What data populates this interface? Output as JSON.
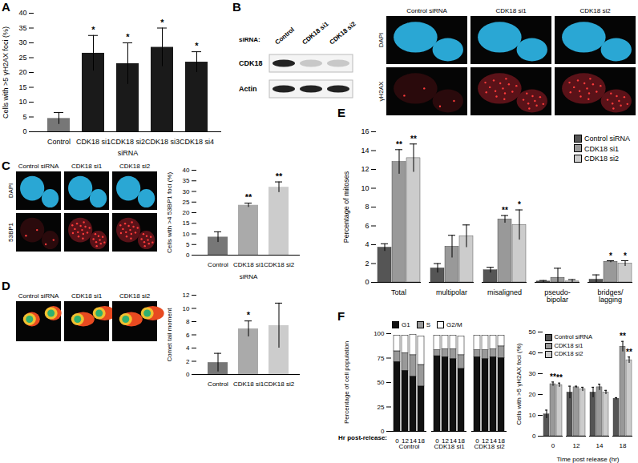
{
  "blot": {
    "panel": "B",
    "header": "siRNA:",
    "lanes": [
      "Control",
      "CDK18 si1",
      "CDK18 si2"
    ],
    "rows": [
      "CDK18",
      "Actin"
    ]
  },
  "images": [
    {
      "columns": [
        "Control siRNA",
        "CDK18 si1",
        "CDK18 si2"
      ],
      "rows": [
        "DAPI",
        "γH2AX"
      ]
    },
    {
      "panel": "C",
      "columns": [
        "Control siRNA",
        "CDK18 si1",
        "CDK18 si2"
      ],
      "rows": [
        "DAPI",
        "53BP1"
      ]
    },
    {
      "panel": "D",
      "columns": [
        "Control siRNA",
        "CDK18 si1",
        "CDK18 si2"
      ]
    }
  ],
  "chart_data": [
    {
      "type": "bar",
      "panel": "A",
      "categories": [
        "Control",
        "CDK18 si1",
        "CDK18 si2",
        "CDK18 si3",
        "CDK18 si4"
      ],
      "values": [
        4.5,
        26.5,
        23,
        28.5,
        23.5
      ],
      "errors": [
        2,
        6,
        7,
        6.5,
        3.5
      ],
      "significance": [
        null,
        "*",
        "*",
        "*",
        "*"
      ],
      "colors": [
        "#777777",
        "#1a1a1a",
        "#1a1a1a",
        "#1a1a1a",
        "#1a1a1a"
      ],
      "ylim": [
        0,
        40
      ],
      "yticks": [
        0,
        5,
        10,
        15,
        20,
        25,
        30,
        35,
        40
      ],
      "y_label": "Cells with >5 γH2AX foci (%)",
      "x_label": "siRNA"
    },
    {
      "type": "bar",
      "categories": [
        "Control",
        "CDK18 si1",
        "CDK18 si2"
      ],
      "values": [
        8.5,
        23.5,
        32
      ],
      "errors": [
        2.5,
        1,
        2.5
      ],
      "significance": [
        null,
        "**",
        "**"
      ],
      "colors": [
        "#777777",
        "#aaaaaa",
        "#cccccc"
      ],
      "ylim": [
        0,
        40
      ],
      "yticks": [
        0,
        5,
        10,
        15,
        20,
        25,
        30,
        35,
        40
      ],
      "y_label": "Cells with >4 53BP1 foci (%)",
      "x_label": "siRNA"
    },
    {
      "type": "bar",
      "categories": [
        "Control",
        "CDK18 si1",
        "CDK18 si2"
      ],
      "values": [
        1.8,
        6.9,
        7.4
      ],
      "errors": [
        1.4,
        1.2,
        3.4
      ],
      "significance": [
        null,
        "*",
        null
      ],
      "colors": [
        "#777777",
        "#aaaaaa",
        "#cccccc"
      ],
      "ylim": [
        0,
        12
      ],
      "yticks": [
        0,
        2,
        4,
        6,
        8,
        10,
        12
      ],
      "y_label": "Comet tail moment"
    },
    {
      "type": "bar",
      "panel": "E",
      "categories": [
        "Total",
        "multipolar",
        "misaligned",
        "pseudo-bipolar",
        "bridges/lagging"
      ],
      "series": [
        {
          "name": "Control siRNA",
          "color": "#555555",
          "values": [
            3.7,
            1.5,
            1.3,
            0.1,
            0.3
          ],
          "errors": [
            0.4,
            0.5,
            0.3,
            0.1,
            0.5
          ],
          "significance": [
            null,
            null,
            null,
            null,
            null
          ]
        },
        {
          "name": "CDK18 si1",
          "color": "#999999",
          "values": [
            12.8,
            3.8,
            6.7,
            0.5,
            2.2
          ],
          "errors": [
            1.3,
            1.2,
            0.4,
            1.0,
            0.1
          ],
          "significance": [
            "**",
            null,
            "**",
            null,
            "*"
          ]
        },
        {
          "name": "CDK18 si2",
          "color": "#cccccc",
          "values": [
            13.2,
            4.9,
            6.1,
            0.1,
            2.0
          ],
          "errors": [
            1.5,
            1.2,
            1.6,
            0.2,
            0.3
          ],
          "significance": [
            "**",
            null,
            "*",
            null,
            "*"
          ]
        }
      ],
      "ylim": [
        0,
        16
      ],
      "yticks": [
        0,
        2,
        4,
        6,
        8,
        10,
        12,
        14,
        16
      ],
      "y_label": "Percentage of mitoses",
      "legend": "top-right"
    },
    {
      "type": "bar",
      "panel": "F",
      "stacked": true,
      "groups": [
        "Control",
        "CDK18 si1",
        "CDK18 si2"
      ],
      "categories": [
        "0",
        "12",
        "14",
        "18"
      ],
      "series": [
        {
          "name": "G1",
          "color": "#111111",
          "values": [
            [
              71,
              62,
              56,
              46
            ],
            [
              77,
              76,
              74,
              64
            ],
            [
              76,
              74,
              76,
              75
            ]
          ]
        },
        {
          "name": "S",
          "color": "#999999",
          "values": [
            [
              11,
              18,
              22,
              22
            ],
            [
              6,
              8,
              10,
              14
            ],
            [
              7,
              9,
              8,
              12
            ]
          ]
        },
        {
          "name": "G2/M",
          "color": "#ffffff",
          "values": [
            [
              16,
              18,
              21,
              29
            ],
            [
              15,
              14,
              14,
              19
            ],
            [
              15,
              15,
              14,
              11
            ]
          ]
        }
      ],
      "ylim": [
        0,
        100
      ],
      "yticks": [
        0,
        25,
        50,
        75,
        100
      ],
      "y_label": "Percentage of cell population",
      "x_label": "Hr post-release:",
      "legend": "top-left"
    },
    {
      "type": "bar",
      "categories": [
        "0",
        "12",
        "14",
        "18"
      ],
      "series": [
        {
          "name": "Control siRNA",
          "color": "#555555",
          "values": [
            10.5,
            21,
            21,
            18
          ],
          "errors": [
            2,
            3,
            2.5,
            0.5
          ],
          "significance": [
            null,
            null,
            null,
            null
          ]
        },
        {
          "name": "CDK18 si1",
          "color": "#999999",
          "values": [
            25,
            23.5,
            23.5,
            43
          ],
          "errors": [
            1,
            0.5,
            1.5,
            2.5
          ],
          "significance": [
            "**",
            null,
            null,
            "**"
          ]
        },
        {
          "name": "CDK18 si2",
          "color": "#cccccc",
          "values": [
            24.5,
            22.5,
            21,
            36.5
          ],
          "errors": [
            1,
            1,
            1,
            1.5
          ],
          "significance": [
            "**",
            null,
            null,
            "**"
          ]
        }
      ],
      "ylim": [
        0,
        50
      ],
      "yticks": [
        0,
        10,
        20,
        30,
        40,
        50
      ],
      "y_label": "Cells with >5 γH2AX foci (%)",
      "x_label": "Time post release (hr)",
      "legend": "top-left"
    }
  ]
}
